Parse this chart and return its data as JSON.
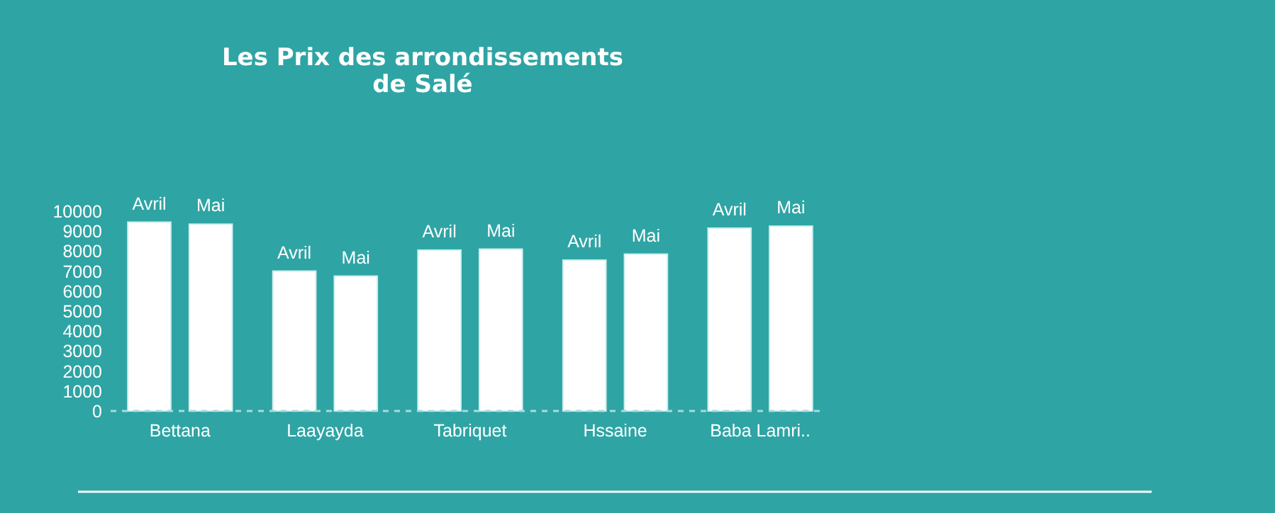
{
  "chart_data": {
    "type": "bar",
    "title": "Les Prix des arrondissements de Salé",
    "categories": [
      "Bettana",
      "Laayayda",
      "Tabriquet",
      "Hssaine",
      "Baba Lamri.."
    ],
    "series": [
      {
        "name": "Avril",
        "color": "#ffffff",
        "values": [
          9450,
          7000,
          8050,
          7550,
          9150
        ]
      },
      {
        "name": "Mai",
        "color": "#ffffff",
        "values": [
          9350,
          6750,
          8100,
          7850,
          9250
        ]
      }
    ],
    "ylim": [
      0,
      10000
    ],
    "yticks": [
      0,
      1000,
      2000,
      3000,
      4000,
      5000,
      6000,
      7000,
      8000,
      9000,
      10000
    ],
    "grid": false,
    "legend": false
  }
}
